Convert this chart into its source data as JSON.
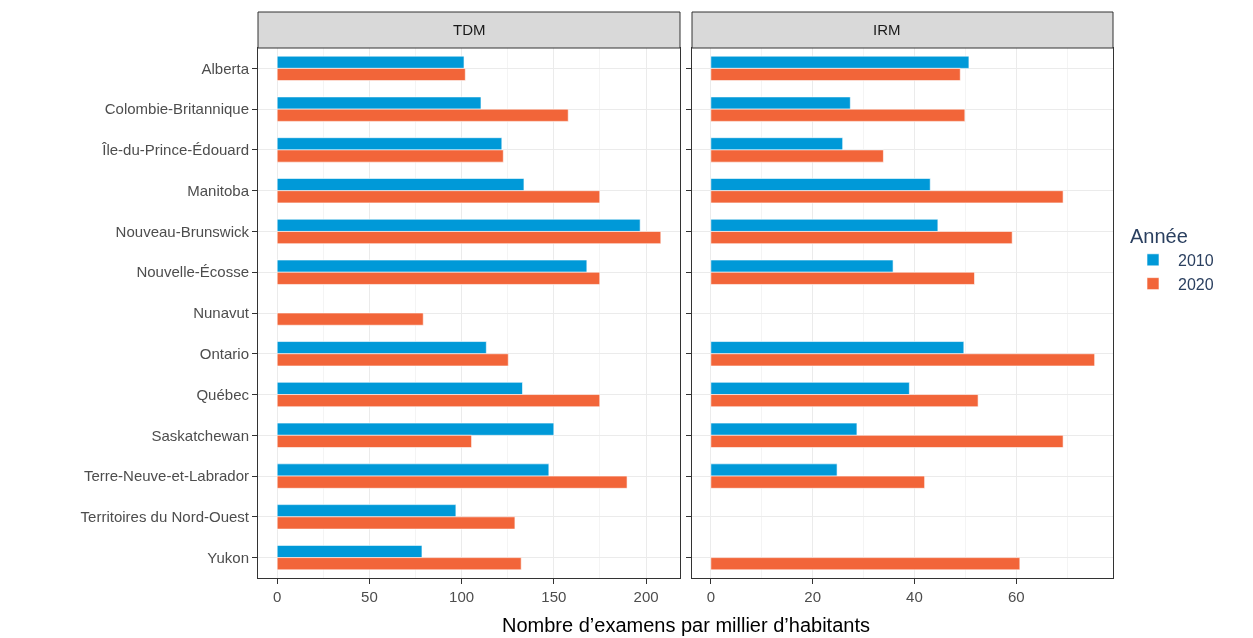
{
  "chart_data": [
    {
      "type": "bar",
      "title": "TDM",
      "orientation": "horizontal",
      "xlabel": "Nombre d’examens par millier d’habitants",
      "legend_title": "Année",
      "legend": "right",
      "grid": true,
      "categories": [
        "Alberta",
        "Colombie-Britannique",
        "Île-du-Prince-Édouard",
        "Manitoba",
        "Nouveau-Brunswick",
        "Nouvelle-Écosse",
        "Nunavut",
        "Ontario",
        "Québec",
        "Saskatchewan",
        "Terre-Neuve-et-Labrador",
        "Territoires du Nord-Ouest",
        "Yukon"
      ],
      "series": [
        {
          "name": "2010",
          "color": "#0099d8",
          "values": [
            101.3,
            110.5,
            121.8,
            133.8,
            196.8,
            167.9,
            null,
            113.4,
            133.0,
            150.0,
            147.3,
            96.9,
            78.5
          ]
        },
        {
          "name": "2020",
          "color": "#f26539",
          "values": [
            102.0,
            157.8,
            122.6,
            174.9,
            208.0,
            174.9,
            79.2,
            125.3,
            174.9,
            105.4,
            189.7,
            128.9,
            132.3
          ]
        }
      ],
      "xlim": [
        -10.4,
        218.4
      ],
      "xticks": [
        0,
        50,
        100,
        150,
        200
      ]
    },
    {
      "type": "bar",
      "title": "IRM",
      "orientation": "horizontal",
      "legend": "right",
      "grid": true,
      "tick_labels": "x",
      "categories": [
        "Alberta",
        "Colombie-Britannique",
        "Île-du-Prince-Édouard",
        "Manitoba",
        "Nouveau-Brunswick",
        "Nouvelle-Écosse",
        "Nunavut",
        "Ontario",
        "Québec",
        "Saskatchewan",
        "Terre-Neuve-et-Labrador",
        "Territoires du Nord-Ouest",
        "Yukon"
      ],
      "series": [
        {
          "name": "2010",
          "color": "#0099d8",
          "values": [
            50.7,
            27.4,
            25.9,
            43.1,
            44.6,
            35.8,
            null,
            49.7,
            39.0,
            28.7,
            24.8,
            null,
            null
          ]
        },
        {
          "name": "2020",
          "color": "#f26539",
          "values": [
            49.0,
            49.9,
            33.9,
            69.2,
            59.2,
            51.8,
            null,
            75.4,
            52.5,
            69.2,
            42.0,
            null,
            60.7
          ]
        }
      ],
      "xlim": [
        -3.7,
        79.0
      ],
      "xticks": [
        0,
        20,
        40,
        60
      ]
    }
  ]
}
